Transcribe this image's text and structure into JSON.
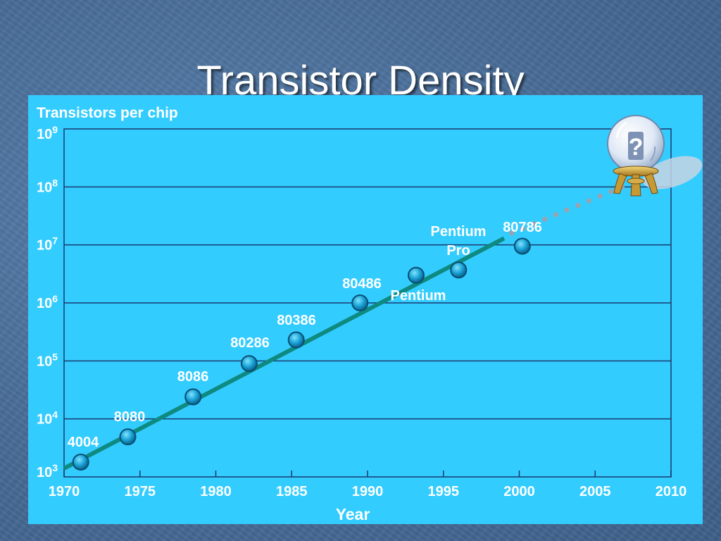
{
  "slide": {
    "title": "Transistor Density"
  },
  "chart_data": {
    "type": "scatter",
    "title": "",
    "ylabel": "Transistors per chip",
    "xlabel": "Year",
    "yscale": "log",
    "xlim": [
      1970,
      2010
    ],
    "ylim": [
      1000,
      1000000000
    ],
    "grid": true,
    "x_ticks": [
      "1970",
      "1975",
      "1980",
      "1985",
      "1990",
      "1995",
      "2000",
      "2005",
      "2010"
    ],
    "y_ticks": [
      {
        "base": "10",
        "exp": "3"
      },
      {
        "base": "10",
        "exp": "4"
      },
      {
        "base": "10",
        "exp": "5"
      },
      {
        "base": "10",
        "exp": "6"
      },
      {
        "base": "10",
        "exp": "7"
      },
      {
        "base": "10",
        "exp": "8"
      },
      {
        "base": "10",
        "exp": "9"
      }
    ],
    "points": [
      {
        "label": "4004",
        "year": 1971.1,
        "transistors": 1800
      },
      {
        "label": "8080",
        "year": 1974.2,
        "transistors": 4900
      },
      {
        "label": "8086",
        "year": 1978.5,
        "transistors": 24000
      },
      {
        "label": "80286",
        "year": 1982.2,
        "transistors": 90000
      },
      {
        "label": "80386",
        "year": 1985.3,
        "transistors": 230000
      },
      {
        "label": "80486",
        "year": 1989.5,
        "transistors": 1000000
      },
      {
        "label": "Pentium",
        "year": 1993.2,
        "transistors": 3000000
      },
      {
        "label": "Pentium Pro",
        "year": 1996.0,
        "transistors": 3700000
      },
      {
        "label": "80786",
        "year": 2000.2,
        "transistors": 9500000
      }
    ],
    "trend": {
      "from": [
        1970,
        1400
      ],
      "to": [
        1999,
        13000000
      ]
    },
    "projection": {
      "from": [
        1999.5,
        16000000
      ],
      "to": [
        2007.5,
        120000000
      ]
    },
    "annotation": "?",
    "colors": {
      "panel": "#33ccff",
      "grid": "#1a3a6e",
      "trend": "#0f8a80",
      "marker": "#1aa3d6",
      "projection": "#9aa3ad"
    }
  }
}
